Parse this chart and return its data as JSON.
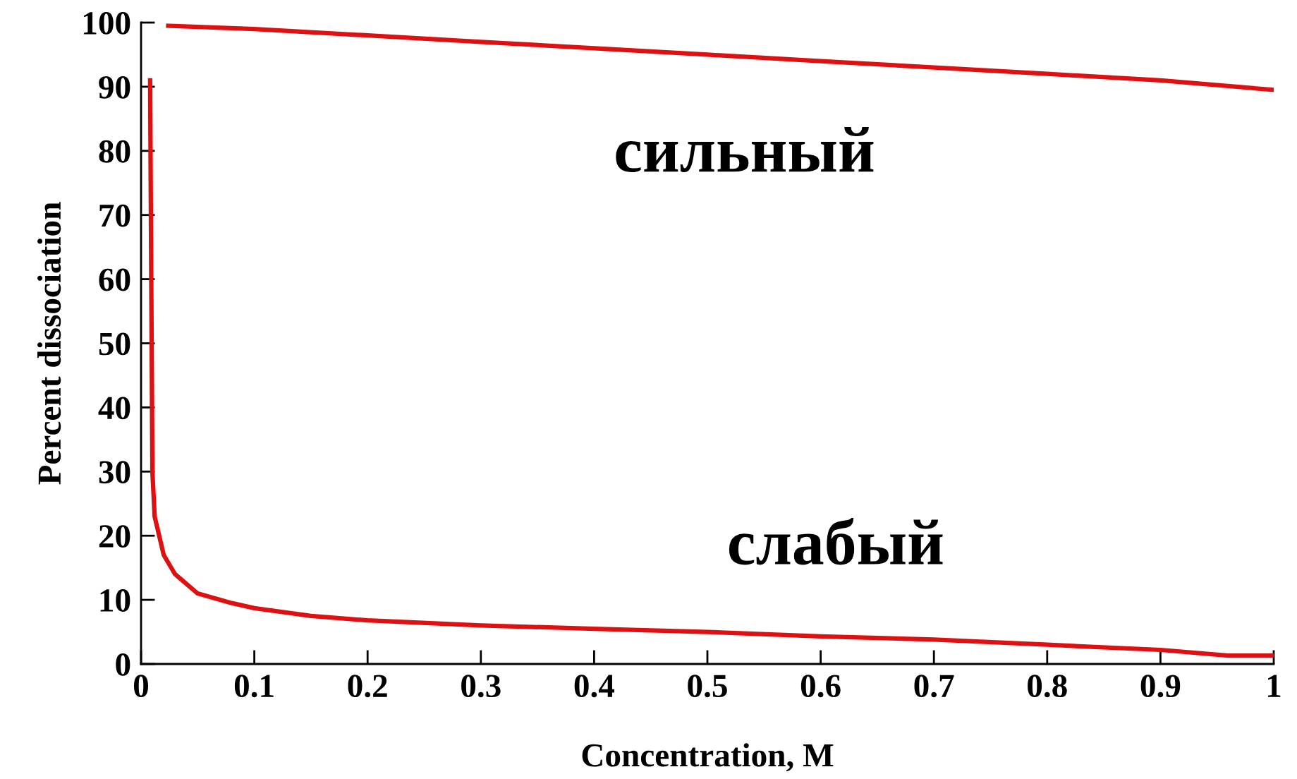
{
  "chart_data": {
    "type": "line",
    "xlabel": "Concentration, M",
    "ylabel": "Percent dissociation",
    "xlim": [
      0,
      1
    ],
    "ylim": [
      0,
      100
    ],
    "xticks": [
      0,
      0.1,
      0.2,
      0.3,
      0.4,
      0.5,
      0.6,
      0.7,
      0.8,
      0.9,
      1
    ],
    "yticks": [
      0,
      10,
      20,
      30,
      40,
      50,
      60,
      70,
      80,
      90,
      100
    ],
    "grid": false,
    "legend": false,
    "marker": "none",
    "line_style": "solid",
    "series": [
      {
        "name": "сильный",
        "color": "#dd1111",
        "x": [
          0.024,
          0.1,
          0.2,
          0.3,
          0.4,
          0.5,
          0.6,
          0.7,
          0.8,
          0.9,
          1
        ],
        "values": [
          99.5,
          99,
          98,
          97,
          96,
          95,
          94,
          93,
          92,
          91,
          89.5
        ]
      },
      {
        "name": "слабый",
        "color": "#dd1111",
        "x": [
          0.008,
          0.009,
          0.01,
          0.012,
          0.02,
          0.03,
          0.05,
          0.08,
          0.1,
          0.15,
          0.2,
          0.3,
          0.4,
          0.5,
          0.6,
          0.7,
          0.8,
          0.9,
          0.96,
          1
        ],
        "values": [
          91,
          60,
          30,
          23,
          17,
          14,
          11,
          9.5,
          8.7,
          7.5,
          6.8,
          6,
          5.5,
          5,
          4.3,
          3.8,
          3,
          2.2,
          1.3,
          1.3
        ]
      }
    ]
  }
}
